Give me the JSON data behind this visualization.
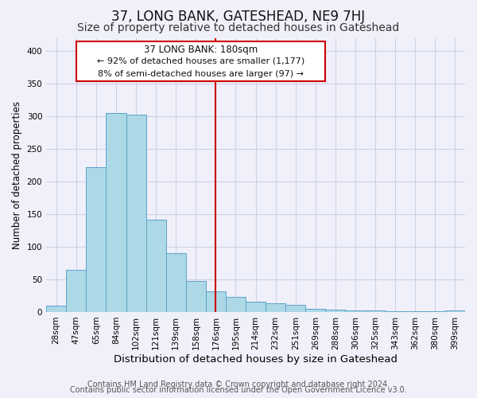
{
  "title": "37, LONG BANK, GATESHEAD, NE9 7HJ",
  "subtitle": "Size of property relative to detached houses in Gateshead",
  "xlabel": "Distribution of detached houses by size in Gateshead",
  "ylabel": "Number of detached properties",
  "bar_labels": [
    "28sqm",
    "47sqm",
    "65sqm",
    "84sqm",
    "102sqm",
    "121sqm",
    "139sqm",
    "158sqm",
    "176sqm",
    "195sqm",
    "214sqm",
    "232sqm",
    "251sqm",
    "269sqm",
    "288sqm",
    "306sqm",
    "325sqm",
    "343sqm",
    "362sqm",
    "380sqm",
    "399sqm"
  ],
  "bar_values": [
    10,
    64,
    222,
    305,
    302,
    141,
    90,
    47,
    32,
    23,
    16,
    13,
    11,
    5,
    3,
    2,
    2,
    1,
    1,
    1,
    2
  ],
  "bar_color": "#add8e6",
  "bar_edge_color": "#5ba3c9",
  "ylim": [
    0,
    420
  ],
  "yticks": [
    0,
    50,
    100,
    150,
    200,
    250,
    300,
    350,
    400
  ],
  "vline_x": 8,
  "vline_color": "#cc0000",
  "annotation_title": "37 LONG BANK: 180sqm",
  "annotation_line1": "← 92% of detached houses are smaller (1,177)",
  "annotation_line2": "8% of semi-detached houses are larger (97) →",
  "annotation_box_color": "#ffffff",
  "annotation_box_edge": "#cc0000",
  "footer1": "Contains HM Land Registry data © Crown copyright and database right 2024.",
  "footer2": "Contains public sector information licensed under the Open Government Licence v3.0.",
  "bg_color": "#f0f0fa",
  "grid_color": "#d0d0e8",
  "title_fontsize": 12,
  "subtitle_fontsize": 10,
  "xlabel_fontsize": 9.5,
  "ylabel_fontsize": 8.5,
  "tick_fontsize": 7.5,
  "footer_fontsize": 7,
  "ann_title_fontsize": 8.5,
  "ann_text_fontsize": 8
}
